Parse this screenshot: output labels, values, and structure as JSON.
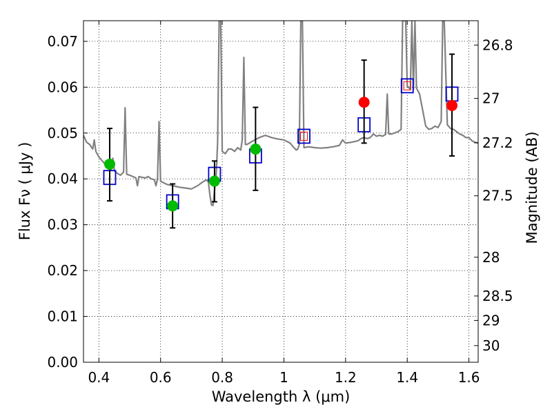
{
  "chart_data": {
    "type": "scatter",
    "title": "",
    "xlabel": "Wavelength  λ (μm)",
    "ylabel": "Flux  Fν  ( μJy )",
    "ylabel_right": "Magnitude (AB)",
    "xlim": [
      0.35,
      1.63
    ],
    "ylim": [
      0.0,
      0.0745
    ],
    "grid": true,
    "x_ticks": [
      0.4,
      0.6,
      0.8,
      1.0,
      1.2,
      1.4,
      1.6
    ],
    "x_tick_labels": [
      "0.4",
      "0.6",
      "0.8",
      "1",
      "1.2",
      "1.4",
      "1.6"
    ],
    "y_ticks": [
      0.0,
      0.01,
      0.02,
      0.03,
      0.04,
      0.05,
      0.06,
      0.07
    ],
    "y_tick_labels": [
      "0.00",
      "0.01",
      "0.02",
      "0.03",
      "0.04",
      "0.05",
      "0.06",
      "0.07"
    ],
    "right_ticks": [
      26.8,
      27.0,
      27.2,
      27.5,
      28.0,
      28.5,
      29.0,
      30.0
    ],
    "right_tick_labels": [
      "26.8",
      "27",
      "27.2",
      "27.5",
      "28",
      "28.5",
      "29",
      "30"
    ],
    "colors": {
      "spectrum": "#808080",
      "model_box": "#0000cc",
      "detection": "#00bb00",
      "nir_detection": "#ff0000",
      "errorbar": "#000000"
    },
    "spectrum": [
      [
        0.35,
        0.0495
      ],
      [
        0.36,
        0.048
      ],
      [
        0.37,
        0.0475
      ],
      [
        0.38,
        0.0465
      ],
      [
        0.385,
        0.0485
      ],
      [
        0.39,
        0.046
      ],
      [
        0.4,
        0.0448
      ],
      [
        0.41,
        0.044
      ],
      [
        0.42,
        0.0432
      ],
      [
        0.43,
        0.0428
      ],
      [
        0.44,
        0.042
      ],
      [
        0.445,
        0.0445
      ],
      [
        0.45,
        0.0418
      ],
      [
        0.46,
        0.0412
      ],
      [
        0.47,
        0.0408
      ],
      [
        0.48,
        0.0415
      ],
      [
        0.485,
        0.0555
      ],
      [
        0.49,
        0.041
      ],
      [
        0.5,
        0.0408
      ],
      [
        0.51,
        0.0405
      ],
      [
        0.52,
        0.0402
      ],
      [
        0.525,
        0.0385
      ],
      [
        0.53,
        0.0405
      ],
      [
        0.55,
        0.0402
      ],
      [
        0.56,
        0.0405
      ],
      [
        0.57,
        0.04
      ],
      [
        0.58,
        0.0398
      ],
      [
        0.585,
        0.0385
      ],
      [
        0.59,
        0.04
      ],
      [
        0.595,
        0.0525
      ],
      [
        0.6,
        0.0395
      ],
      [
        0.62,
        0.0388
      ],
      [
        0.64,
        0.0385
      ],
      [
        0.66,
        0.0382
      ],
      [
        0.68,
        0.038
      ],
      [
        0.7,
        0.0378
      ],
      [
        0.72,
        0.0385
      ],
      [
        0.73,
        0.039
      ],
      [
        0.74,
        0.0395
      ],
      [
        0.75,
        0.0398
      ],
      [
        0.755,
        0.0393
      ],
      [
        0.76,
        0.0365
      ],
      [
        0.765,
        0.0343
      ],
      [
        0.77,
        0.0342
      ],
      [
        0.775,
        0.0375
      ],
      [
        0.78,
        0.0405
      ],
      [
        0.785,
        0.048
      ],
      [
        0.79,
        0.0745
      ],
      [
        0.795,
        0.0745
      ],
      [
        0.8,
        0.046
      ],
      [
        0.81,
        0.0455
      ],
      [
        0.82,
        0.0465
      ],
      [
        0.83,
        0.0465
      ],
      [
        0.84,
        0.046
      ],
      [
        0.85,
        0.0468
      ],
      [
        0.86,
        0.0463
      ],
      [
        0.865,
        0.0485
      ],
      [
        0.87,
        0.0665
      ],
      [
        0.875,
        0.0475
      ],
      [
        0.88,
        0.0475
      ],
      [
        0.9,
        0.0483
      ],
      [
        0.92,
        0.049
      ],
      [
        0.94,
        0.0495
      ],
      [
        0.96,
        0.049
      ],
      [
        0.98,
        0.0487
      ],
      [
        1.0,
        0.0485
      ],
      [
        1.02,
        0.0478
      ],
      [
        1.03,
        0.047
      ],
      [
        1.04,
        0.0463
      ],
      [
        1.045,
        0.0465
      ],
      [
        1.05,
        0.0475
      ],
      [
        1.055,
        0.0745
      ],
      [
        1.06,
        0.0745
      ],
      [
        1.065,
        0.0468
      ],
      [
        1.08,
        0.047
      ],
      [
        1.1,
        0.0468
      ],
      [
        1.12,
        0.0467
      ],
      [
        1.14,
        0.0468
      ],
      [
        1.16,
        0.047
      ],
      [
        1.18,
        0.0473
      ],
      [
        1.19,
        0.0485
      ],
      [
        1.2,
        0.0478
      ],
      [
        1.22,
        0.048
      ],
      [
        1.24,
        0.0483
      ],
      [
        1.25,
        0.0488
      ],
      [
        1.26,
        0.049
      ],
      [
        1.27,
        0.0488
      ],
      [
        1.28,
        0.049
      ],
      [
        1.29,
        0.0498
      ],
      [
        1.3,
        0.0493
      ],
      [
        1.31,
        0.0495
      ],
      [
        1.32,
        0.0493
      ],
      [
        1.33,
        0.0497
      ],
      [
        1.335,
        0.0585
      ],
      [
        1.34,
        0.0498
      ],
      [
        1.35,
        0.0498
      ],
      [
        1.37,
        0.0503
      ],
      [
        1.38,
        0.0508
      ],
      [
        1.385,
        0.0745
      ],
      [
        1.39,
        0.0745
      ],
      [
        1.395,
        0.0745
      ],
      [
        1.4,
        0.0603
      ],
      [
        1.41,
        0.0595
      ],
      [
        1.415,
        0.0745
      ],
      [
        1.42,
        0.0595
      ],
      [
        1.425,
        0.0745
      ],
      [
        1.43,
        0.0598
      ],
      [
        1.44,
        0.0585
      ],
      [
        1.46,
        0.0515
      ],
      [
        1.47,
        0.0508
      ],
      [
        1.48,
        0.051
      ],
      [
        1.49,
        0.0515
      ],
      [
        1.5,
        0.0512
      ],
      [
        1.51,
        0.0525
      ],
      [
        1.515,
        0.0745
      ],
      [
        1.52,
        0.0745
      ],
      [
        1.53,
        0.0518
      ],
      [
        1.54,
        0.051
      ],
      [
        1.55,
        0.0508
      ],
      [
        1.56,
        0.0503
      ],
      [
        1.57,
        0.0498
      ],
      [
        1.58,
        0.0495
      ],
      [
        1.59,
        0.049
      ],
      [
        1.6,
        0.049
      ],
      [
        1.61,
        0.0483
      ],
      [
        1.62,
        0.048
      ],
      [
        1.63,
        0.0478
      ]
    ],
    "model_points": [
      {
        "x": 0.435,
        "y": 0.0403
      },
      {
        "x": 0.639,
        "y": 0.035
      },
      {
        "x": 0.775,
        "y": 0.041
      },
      {
        "x": 0.908,
        "y": 0.045
      },
      {
        "x": 1.065,
        "y": 0.0493
      },
      {
        "x": 1.26,
        "y": 0.0518
      },
      {
        "x": 1.4,
        "y": 0.0603
      },
      {
        "x": 1.545,
        "y": 0.0585
      }
    ],
    "observed_points": [
      {
        "x": 0.435,
        "y": 0.0432,
        "yerr_low": 0.0352,
        "yerr_high": 0.051,
        "band": "optical"
      },
      {
        "x": 0.639,
        "y": 0.0341,
        "yerr_low": 0.0293,
        "yerr_high": 0.0389,
        "band": "optical"
      },
      {
        "x": 0.775,
        "y": 0.0395,
        "yerr_low": 0.035,
        "yerr_high": 0.0439,
        "band": "optical"
      },
      {
        "x": 0.908,
        "y": 0.0465,
        "yerr_low": 0.0375,
        "yerr_high": 0.0556,
        "band": "optical"
      },
      {
        "x": 1.26,
        "y": 0.0567,
        "yerr_low": 0.0478,
        "yerr_high": 0.0659,
        "band": "nir"
      },
      {
        "x": 1.545,
        "y": 0.056,
        "yerr_low": 0.045,
        "yerr_high": 0.0672,
        "band": "nir"
      }
    ],
    "upper_limit_markers": [
      {
        "x": 1.065,
        "y": 0.0493
      },
      {
        "x": 1.4,
        "y": 0.0603
      }
    ]
  }
}
